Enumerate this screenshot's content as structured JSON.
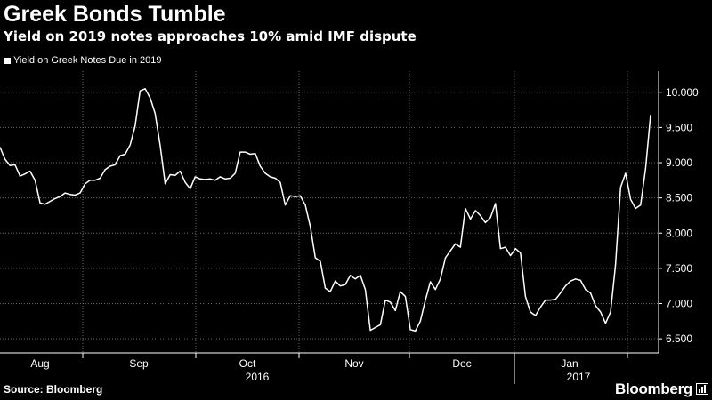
{
  "header": {
    "title": "Greek Bonds Tumble",
    "subtitle": "Yield on 2019 notes approaches 10% amid IMF dispute"
  },
  "footer": {
    "source": "Source: Bloomberg",
    "brand": "Bloomberg"
  },
  "colors": {
    "background": "#000000",
    "line": "#ffffff",
    "grid": "#666666"
  },
  "chart_data": {
    "type": "line",
    "title": "Greek Bonds Tumble",
    "subtitle": "Yield on 2019 notes approaches 10% amid IMF dispute",
    "xlabel": "",
    "ylabel": "",
    "y_axis_side": "right",
    "ylim": [
      6.3,
      10.3
    ],
    "yticks": [
      6.5,
      7.0,
      7.5,
      8.0,
      8.5,
      9.0,
      9.5,
      10.0
    ],
    "ytick_labels": [
      "6.500",
      "7.000",
      "7.500",
      "8.000",
      "8.500",
      "9.000",
      "9.500",
      "10.000"
    ],
    "grid": true,
    "legend_position": "top-left",
    "x_axis": {
      "month_labels": [
        "Aug",
        "Sep",
        "Oct",
        "Nov",
        "Dec",
        "Jan"
      ],
      "year_labels": [
        "2016",
        "2017"
      ]
    },
    "series": [
      {
        "name": "Yield on Greek Notes Due in 2019",
        "values": [
          9.22,
          9.05,
          8.96,
          8.97,
          8.81,
          8.84,
          8.88,
          8.75,
          8.43,
          8.41,
          8.45,
          8.49,
          8.52,
          8.57,
          8.55,
          8.54,
          8.57,
          8.7,
          8.75,
          8.75,
          8.78,
          8.9,
          8.95,
          8.97,
          9.1,
          9.12,
          9.25,
          9.52,
          10.02,
          10.05,
          9.92,
          9.7,
          9.25,
          8.7,
          8.83,
          8.82,
          8.88,
          8.72,
          8.63,
          8.8,
          8.77,
          8.76,
          8.77,
          8.75,
          8.8,
          8.77,
          8.78,
          8.85,
          9.15,
          9.15,
          9.12,
          9.13,
          8.95,
          8.85,
          8.8,
          8.78,
          8.72,
          8.4,
          8.53,
          8.52,
          8.53,
          8.4,
          8.1,
          7.65,
          7.6,
          7.22,
          7.17,
          7.32,
          7.25,
          7.27,
          7.4,
          7.35,
          7.4,
          7.2,
          6.62,
          6.66,
          6.7,
          7.05,
          7.02,
          6.9,
          7.17,
          7.1,
          6.63,
          6.61,
          6.75,
          7.05,
          7.31,
          7.2,
          7.35,
          7.65,
          7.75,
          7.85,
          7.8,
          8.35,
          8.2,
          8.32,
          8.25,
          8.15,
          8.22,
          8.42,
          7.78,
          7.8,
          7.68,
          7.78,
          7.72,
          7.1,
          6.88,
          6.83,
          6.95,
          7.05,
          7.05,
          7.06,
          7.15,
          7.25,
          7.32,
          7.35,
          7.33,
          7.2,
          7.15,
          6.97,
          6.88,
          6.72,
          6.88,
          7.55,
          8.65,
          8.85,
          8.48,
          8.35,
          8.4,
          8.92,
          9.68
        ]
      }
    ]
  }
}
